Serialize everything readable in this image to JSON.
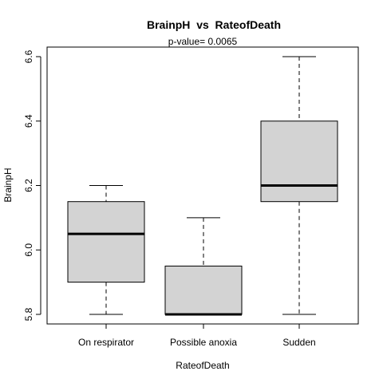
{
  "chart_data": {
    "type": "box",
    "title": "BrainpH  vs  RateofDeath",
    "subtitle": "p-value= 0.0065",
    "xlabel": "RateofDeath",
    "ylabel": "BrainpH",
    "categories": [
      "On respirator",
      "Possible anoxia",
      "Sudden"
    ],
    "boxes": [
      {
        "category": "On respirator",
        "min": 5.8,
        "q1": 5.9,
        "median": 6.05,
        "q3": 6.15,
        "max": 6.2
      },
      {
        "category": "Possible anoxia",
        "min": 5.8,
        "q1": 5.8,
        "median": 5.8,
        "q3": 5.95,
        "max": 6.1
      },
      {
        "category": "Sudden",
        "min": 5.8,
        "q1": 6.15,
        "median": 6.2,
        "q3": 6.4,
        "max": 6.6
      }
    ],
    "ylim": [
      5.77,
      6.63
    ],
    "yticks": [
      "5.8",
      "6.0",
      "6.2",
      "6.4",
      "6.6"
    ],
    "box_fill": "#d3d3d3",
    "grid": false,
    "legend": "none"
  }
}
